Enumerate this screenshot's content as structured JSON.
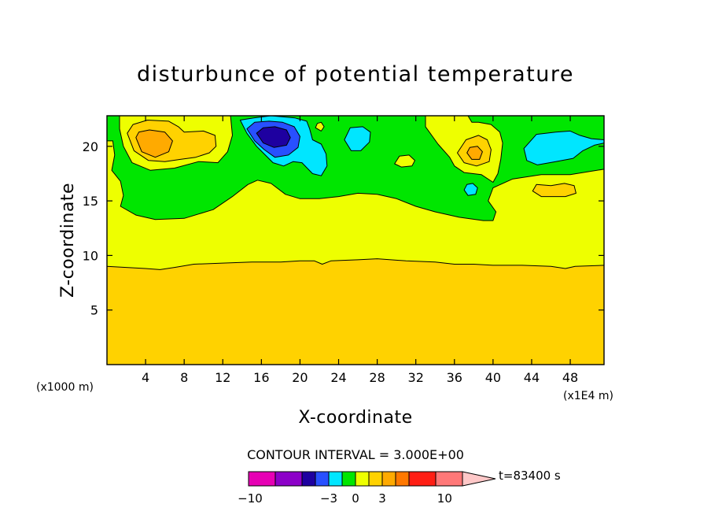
{
  "chart_data": {
    "type": "heatmap",
    "title": "disturbunce of potential temperature",
    "xlabel": "X-coordinate",
    "ylabel": "Z-coordinate",
    "x_unit_label": "(x1E4 m)",
    "y_unit_label": "(x1000 m)",
    "xlim": [
      0,
      51.5
    ],
    "ylim": [
      0,
      22.8
    ],
    "x_ticks": [
      4,
      8,
      12,
      16,
      20,
      24,
      28,
      32,
      36,
      40,
      44,
      48
    ],
    "y_ticks": [
      5,
      10,
      15,
      20
    ],
    "contour_interval_label": "CONTOUR INTERVAL = 3.000E+00",
    "time_label": "t=83400 s",
    "colorbar": {
      "labels": [
        {
          "value": -10,
          "text": "−10"
        },
        {
          "value": -3,
          "text": "−3"
        },
        {
          "value": 0,
          "text": "0"
        },
        {
          "value": 3,
          "text": "3"
        },
        {
          "value": 10,
          "text": "10"
        }
      ],
      "bins": [
        {
          "from": -12,
          "to": -9,
          "color": "#e600b4"
        },
        {
          "from": -9,
          "to": -6,
          "color": "#8c00c8"
        },
        {
          "from": -6,
          "to": -4.5,
          "color": "#1e00a0"
        },
        {
          "from": -4.5,
          "to": -3,
          "color": "#2850ff"
        },
        {
          "from": -3,
          "to": -1.5,
          "color": "#00e6ff"
        },
        {
          "from": -1.5,
          "to": 0,
          "color": "#00e600"
        },
        {
          "from": 0,
          "to": 1.5,
          "color": "#eeff00"
        },
        {
          "from": 1.5,
          "to": 3,
          "color": "#ffd200"
        },
        {
          "from": 3,
          "to": 4.5,
          "color": "#ffaa00"
        },
        {
          "from": 4.5,
          "to": 6,
          "color": "#ff7800"
        },
        {
          "from": 6,
          "to": 9,
          "color": "#ff1e14"
        },
        {
          "from": 9,
          "to": 12,
          "color": "#ff7878"
        }
      ],
      "triangle_color": "#ffc8c8"
    },
    "regions": [
      {
        "level": 0.5,
        "color": "#eeff00",
        "points": [
          [
            0,
            22.8
          ],
          [
            51.5,
            22.8
          ],
          [
            51.5,
            0
          ],
          [
            0,
            0
          ]
        ]
      },
      {
        "level": 1.5,
        "color": "#ffd200",
        "points": [
          [
            0,
            0
          ],
          [
            0,
            9
          ],
          [
            2,
            8.9
          ],
          [
            4,
            8.8
          ],
          [
            5.5,
            8.7
          ],
          [
            7,
            8.9
          ],
          [
            9,
            9.2
          ],
          [
            12,
            9.3
          ],
          [
            15,
            9.4
          ],
          [
            18,
            9.4
          ],
          [
            20,
            9.5
          ],
          [
            21.5,
            9.5
          ],
          [
            22.3,
            9.2
          ],
          [
            23.2,
            9.5
          ],
          [
            26,
            9.6
          ],
          [
            28,
            9.7
          ],
          [
            31,
            9.5
          ],
          [
            34,
            9.4
          ],
          [
            36,
            9.2
          ],
          [
            38,
            9.2
          ],
          [
            40,
            9.1
          ],
          [
            43,
            9.1
          ],
          [
            46,
            9
          ],
          [
            47.5,
            8.8
          ],
          [
            48.5,
            9
          ],
          [
            51.5,
            9.1
          ],
          [
            51.5,
            0
          ]
        ]
      },
      {
        "level": -0.5,
        "color": "#00e600",
        "points": [
          [
            0,
            22.8
          ],
          [
            0,
            20.5
          ],
          [
            0.6,
            20.5
          ],
          [
            0.8,
            19.2
          ],
          [
            0.5,
            17.8
          ],
          [
            1.4,
            16.8
          ],
          [
            1.7,
            15.5
          ],
          [
            1.4,
            14.5
          ],
          [
            3,
            13.7
          ],
          [
            5,
            13.3
          ],
          [
            8,
            13.4
          ],
          [
            11,
            14.2
          ],
          [
            13,
            15.4
          ],
          [
            14.6,
            16.5
          ],
          [
            15.6,
            16.9
          ],
          [
            17,
            16.6
          ],
          [
            18.5,
            15.6
          ],
          [
            20,
            15.2
          ],
          [
            22,
            15.2
          ],
          [
            24,
            15.4
          ],
          [
            26,
            15.7
          ],
          [
            28,
            15.6
          ],
          [
            30,
            15.2
          ],
          [
            32,
            14.5
          ],
          [
            34,
            14
          ],
          [
            36.5,
            13.5
          ],
          [
            39,
            13.2
          ],
          [
            40,
            13.2
          ],
          [
            40.3,
            14
          ],
          [
            39.5,
            15
          ],
          [
            40,
            16.2
          ],
          [
            42,
            17
          ],
          [
            45,
            17.4
          ],
          [
            48,
            17.4
          ],
          [
            50,
            17.7
          ],
          [
            51.5,
            17.9
          ],
          [
            51.5,
            22.8
          ]
        ]
      },
      {
        "level": 0.5,
        "color": "#eeff00",
        "points": [
          [
            1.3,
            22.8
          ],
          [
            1.3,
            21.6
          ],
          [
            1.7,
            20
          ],
          [
            2.6,
            18.5
          ],
          [
            4.5,
            17.8
          ],
          [
            7,
            18
          ],
          [
            9.5,
            18.6
          ],
          [
            11.5,
            18.5
          ],
          [
            12.5,
            19.5
          ],
          [
            13,
            21
          ],
          [
            12.8,
            22.8
          ]
        ]
      },
      {
        "level": 0.5,
        "color": "#eeff00",
        "points": [
          [
            33,
            22.8
          ],
          [
            33,
            21.8
          ],
          [
            34.3,
            20.2
          ],
          [
            35.5,
            19
          ],
          [
            36,
            18.2
          ],
          [
            37,
            17.6
          ],
          [
            38.8,
            17.4
          ],
          [
            40,
            16.7
          ],
          [
            40.5,
            17.5
          ],
          [
            40.8,
            18.8
          ],
          [
            41,
            20.3
          ],
          [
            40.7,
            21.3
          ],
          [
            39.8,
            22
          ],
          [
            38.5,
            22.2
          ],
          [
            37.8,
            22.2
          ],
          [
            37.4,
            22.8
          ]
        ]
      },
      {
        "level": 0.5,
        "color": "#eeff00",
        "points": [
          [
            29.8,
            18.4
          ],
          [
            30.5,
            18.1
          ],
          [
            31.6,
            18.2
          ],
          [
            31.9,
            18.7
          ],
          [
            31.3,
            19.2
          ],
          [
            30.3,
            19.1
          ]
        ]
      },
      {
        "level": 0.5,
        "color": "#eeff00",
        "points": [
          [
            21.6,
            21.7
          ],
          [
            22.2,
            21.4
          ],
          [
            22.5,
            21.8
          ],
          [
            22.2,
            22.2
          ],
          [
            21.8,
            22.1
          ]
        ]
      },
      {
        "level": 1.5,
        "color": "#ffd200",
        "points": [
          [
            2.1,
            21.2
          ],
          [
            2.8,
            19.6
          ],
          [
            4.3,
            18.7
          ],
          [
            6,
            18.6
          ],
          [
            7.6,
            18.8
          ],
          [
            9.2,
            19
          ],
          [
            10.6,
            19.4
          ],
          [
            11.3,
            20
          ],
          [
            11.2,
            21
          ],
          [
            10,
            21.4
          ],
          [
            8,
            21.3
          ],
          [
            7.4,
            21.8
          ],
          [
            6.4,
            22.3
          ],
          [
            4.2,
            22.4
          ],
          [
            2.7,
            22
          ]
        ]
      },
      {
        "level": 1.5,
        "color": "#ffd200",
        "points": [
          [
            36.3,
            19.4
          ],
          [
            37,
            18.5
          ],
          [
            38.3,
            18.2
          ],
          [
            39.6,
            18.6
          ],
          [
            39.8,
            19.7
          ],
          [
            39.4,
            20.6
          ],
          [
            38.5,
            21
          ],
          [
            37.2,
            20.6
          ]
        ]
      },
      {
        "level": 1.5,
        "color": "#ffd200",
        "points": [
          [
            44.1,
            15.9
          ],
          [
            45,
            15.4
          ],
          [
            47.5,
            15.4
          ],
          [
            48.6,
            15.7
          ],
          [
            48.4,
            16.4
          ],
          [
            47.4,
            16.6
          ],
          [
            46,
            16.4
          ],
          [
            44.5,
            16.5
          ]
        ]
      },
      {
        "level": 3.5,
        "color": "#ffaa00",
        "points": [
          [
            3,
            20.8
          ],
          [
            3.6,
            19.5
          ],
          [
            5,
            19
          ],
          [
            6.4,
            19.5
          ],
          [
            6.8,
            20.5
          ],
          [
            6,
            21.3
          ],
          [
            4.4,
            21.5
          ],
          [
            3.3,
            21.3
          ]
        ]
      },
      {
        "level": 3.5,
        "color": "#ffaa00",
        "points": [
          [
            37.3,
            19.4
          ],
          [
            37.8,
            18.8
          ],
          [
            38.6,
            18.8
          ],
          [
            38.9,
            19.5
          ],
          [
            38.4,
            20
          ],
          [
            37.6,
            19.9
          ]
        ]
      },
      {
        "level": -1.5,
        "color": "#00e6ff",
        "points": [
          [
            13.8,
            22.4
          ],
          [
            14.5,
            21.2
          ],
          [
            15.5,
            20
          ],
          [
            16.4,
            19.2
          ],
          [
            17.2,
            18.5
          ],
          [
            18.3,
            18.2
          ],
          [
            19.3,
            18.6
          ],
          [
            20.2,
            18.5
          ],
          [
            21.3,
            17.5
          ],
          [
            22.2,
            17.3
          ],
          [
            22.8,
            18.2
          ],
          [
            22.7,
            19.3
          ],
          [
            22.2,
            20.2
          ],
          [
            21.3,
            20.6
          ],
          [
            21,
            21.6
          ],
          [
            20.7,
            22.3
          ],
          [
            19.5,
            22.6
          ],
          [
            17,
            22.8
          ],
          [
            15.2,
            22.6
          ]
        ]
      },
      {
        "level": -1.5,
        "color": "#00e6ff",
        "points": [
          [
            24.6,
            20.6
          ],
          [
            25.3,
            19.6
          ],
          [
            26.3,
            19.6
          ],
          [
            27.2,
            20.4
          ],
          [
            27.3,
            21.3
          ],
          [
            26.5,
            21.8
          ],
          [
            25.2,
            21.7
          ]
        ]
      },
      {
        "level": -1.5,
        "color": "#00e6ff",
        "points": [
          [
            43.2,
            19.8
          ],
          [
            43.5,
            18.7
          ],
          [
            44.6,
            18.3
          ],
          [
            46.5,
            18.6
          ],
          [
            48.3,
            18.9
          ],
          [
            49.3,
            19.6
          ],
          [
            50.5,
            20.1
          ],
          [
            51.5,
            20.3
          ],
          [
            51.5,
            20.6
          ],
          [
            50.2,
            20.7
          ],
          [
            49,
            21
          ],
          [
            48,
            21.4
          ],
          [
            46.5,
            21.3
          ],
          [
            44.5,
            21.1
          ]
        ]
      },
      {
        "level": -1.5,
        "color": "#00e6ff",
        "points": [
          [
            37,
            16
          ],
          [
            37.4,
            15.5
          ],
          [
            38.2,
            15.6
          ],
          [
            38.4,
            16.2
          ],
          [
            37.9,
            16.6
          ],
          [
            37.3,
            16.5
          ]
        ]
      },
      {
        "level": -3.5,
        "color": "#2850ff",
        "points": [
          [
            14.5,
            21.6
          ],
          [
            15.3,
            20.5
          ],
          [
            16.3,
            19.7
          ],
          [
            17.4,
            19
          ],
          [
            18.8,
            19.2
          ],
          [
            19.8,
            19.9
          ],
          [
            20,
            20.9
          ],
          [
            19.4,
            21.8
          ],
          [
            18.2,
            22.2
          ],
          [
            16.8,
            22.3
          ],
          [
            15.3,
            22.2
          ]
        ]
      },
      {
        "level": -5,
        "color": "#1e00a0",
        "points": [
          [
            15.5,
            21.2
          ],
          [
            16.2,
            20.3
          ],
          [
            17.3,
            19.9
          ],
          [
            18.6,
            20.1
          ],
          [
            19,
            20.8
          ],
          [
            18.6,
            21.5
          ],
          [
            17.4,
            21.8
          ],
          [
            16.2,
            21.7
          ]
        ]
      }
    ]
  }
}
